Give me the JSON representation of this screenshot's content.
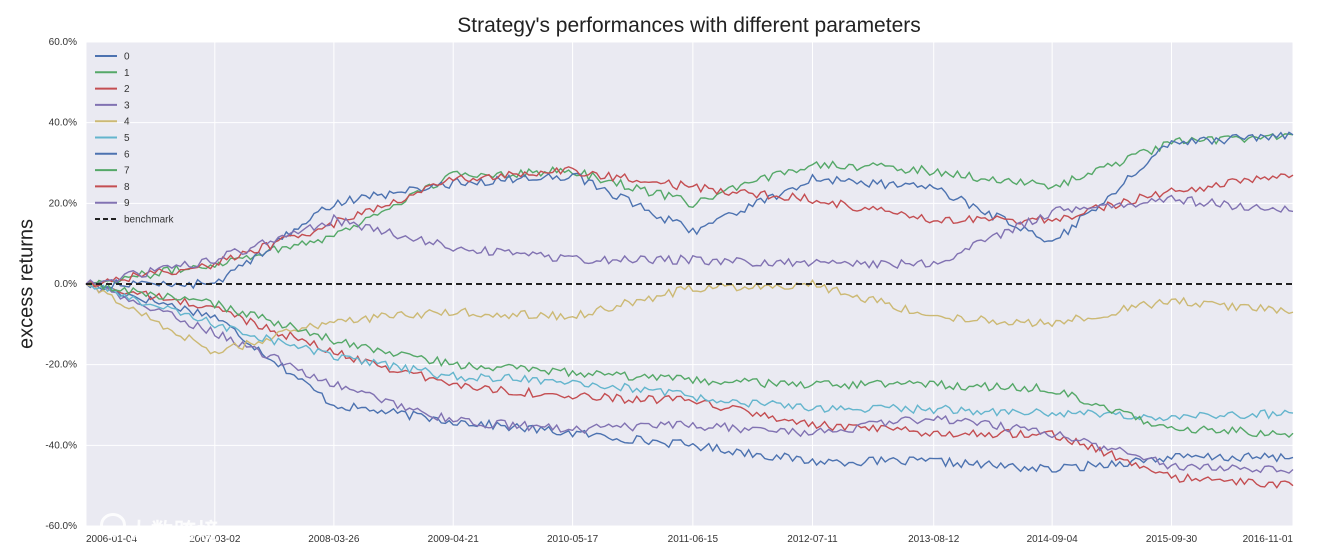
{
  "chart_data": {
    "type": "line",
    "title": "Strategy's performances with different parameters",
    "xlabel": "",
    "ylabel": "excess returns",
    "xlim": [
      "2006-01-04",
      "2016-11-01"
    ],
    "ylim": [
      -0.6,
      0.6
    ],
    "grid": true,
    "legend_position": "upper-left",
    "x_ticks": [
      "2006-01-04",
      "2007-03-02",
      "2008-03-26",
      "2009-04-21",
      "2010-05-17",
      "2011-06-15",
      "2012-07-11",
      "2013-08-12",
      "2014-09-04",
      "2015-09-30",
      "2016-11-01"
    ],
    "y_ticks": [
      -0.6,
      -0.4,
      -0.2,
      0.0,
      0.2,
      0.4,
      0.6
    ],
    "x_tick_labels": [
      "2006-01-04",
      "2007-03-02",
      "2008-03-26",
      "2009-04-21",
      "2010-05-17",
      "2011-06-15",
      "2012-07-11",
      "2013-08-12",
      "2014-09-04",
      "2015-09-30",
      "2016-11-01"
    ],
    "y_tick_labels": [
      "-60.0%",
      "-40.0%",
      "-20.0%",
      "0.0%",
      "20.0%",
      "40.0%",
      "60.0%"
    ],
    "series": [
      {
        "name": "0",
        "color": "#4c72b0",
        "x": [
          "2006-01-04",
          "2007-03-02",
          "2008-03-26",
          "2009-04-21",
          "2010-05-17",
          "2011-06-15",
          "2012-07-11",
          "2013-08-12",
          "2014-09-04",
          "2015-09-30",
          "2016-11-01"
        ],
        "values": [
          0.0,
          -0.08,
          -0.3,
          -0.34,
          -0.37,
          -0.4,
          -0.44,
          -0.44,
          -0.46,
          -0.43,
          -0.43
        ]
      },
      {
        "name": "1",
        "color": "#55a868",
        "x": [
          "2006-01-04",
          "2007-03-02",
          "2008-03-26",
          "2009-04-21",
          "2010-05-17",
          "2011-06-15",
          "2012-07-11",
          "2013-08-12",
          "2014-09-04",
          "2015-09-30",
          "2016-11-01"
        ],
        "values": [
          0.0,
          0.05,
          0.12,
          0.27,
          0.28,
          0.2,
          0.3,
          0.28,
          0.24,
          0.35,
          0.37
        ]
      },
      {
        "name": "2",
        "color": "#c44e52",
        "x": [
          "2006-01-04",
          "2007-03-02",
          "2008-03-26",
          "2009-04-21",
          "2010-05-17",
          "2011-06-15",
          "2012-07-11",
          "2013-08-12",
          "2014-09-04",
          "2015-09-30",
          "2016-11-01"
        ],
        "values": [
          0.0,
          -0.06,
          -0.17,
          -0.25,
          -0.28,
          -0.29,
          -0.35,
          -0.37,
          -0.37,
          -0.48,
          -0.5
        ]
      },
      {
        "name": "3",
        "color": "#8172b2",
        "x": [
          "2006-01-04",
          "2007-03-02",
          "2008-03-26",
          "2009-04-21",
          "2010-05-17",
          "2011-06-15",
          "2012-07-11",
          "2013-08-12",
          "2014-09-04",
          "2015-09-30",
          "2016-11-01"
        ],
        "values": [
          0.0,
          -0.12,
          -0.25,
          -0.34,
          -0.36,
          -0.35,
          -0.37,
          -0.33,
          -0.37,
          -0.45,
          -0.46
        ]
      },
      {
        "name": "4",
        "color": "#ccb974",
        "x": [
          "2006-01-04",
          "2007-03-02",
          "2008-03-26",
          "2009-04-21",
          "2010-05-17",
          "2011-06-15",
          "2012-07-11",
          "2013-08-12",
          "2014-09-04",
          "2015-09-30",
          "2016-11-01"
        ],
        "values": [
          0.0,
          -0.17,
          -0.09,
          -0.07,
          -0.08,
          -0.01,
          0.0,
          -0.08,
          -0.1,
          -0.04,
          -0.07
        ]
      },
      {
        "name": "5",
        "color": "#64b5cd",
        "x": [
          "2006-01-04",
          "2007-03-02",
          "2008-03-26",
          "2009-04-21",
          "2010-05-17",
          "2011-06-15",
          "2012-07-11",
          "2013-08-12",
          "2014-09-04",
          "2015-09-30",
          "2016-11-01"
        ],
        "values": [
          0.0,
          -0.1,
          -0.18,
          -0.23,
          -0.24,
          -0.28,
          -0.31,
          -0.31,
          -0.32,
          -0.33,
          -0.32
        ]
      },
      {
        "name": "6",
        "color": "#4c72b0",
        "x": [
          "2006-01-04",
          "2007-03-02",
          "2008-03-26",
          "2009-04-21",
          "2010-05-17",
          "2011-06-15",
          "2012-07-11",
          "2013-08-12",
          "2014-09-04",
          "2015-09-30",
          "2016-11-01"
        ],
        "values": [
          0.0,
          0.0,
          0.2,
          0.25,
          0.27,
          0.13,
          0.26,
          0.24,
          0.1,
          0.35,
          0.37
        ]
      },
      {
        "name": "7",
        "color": "#55a868",
        "x": [
          "2006-01-04",
          "2007-03-02",
          "2008-03-26",
          "2009-04-21",
          "2010-05-17",
          "2011-06-15",
          "2012-07-11",
          "2013-08-12",
          "2014-09-04",
          "2015-09-30",
          "2016-11-01"
        ],
        "values": [
          0.0,
          -0.05,
          -0.14,
          -0.2,
          -0.22,
          -0.24,
          -0.25,
          -0.25,
          -0.26,
          -0.36,
          -0.37
        ]
      },
      {
        "name": "8",
        "color": "#c44e52",
        "x": [
          "2006-01-04",
          "2007-03-02",
          "2008-03-26",
          "2009-04-21",
          "2010-05-17",
          "2011-06-15",
          "2012-07-11",
          "2013-08-12",
          "2014-09-04",
          "2015-09-30",
          "2016-11-01"
        ],
        "values": [
          0.0,
          0.05,
          0.15,
          0.26,
          0.28,
          0.24,
          0.21,
          0.16,
          0.16,
          0.23,
          0.27
        ]
      },
      {
        "name": "9",
        "color": "#8172b2",
        "x": [
          "2006-01-04",
          "2007-03-02",
          "2008-03-26",
          "2009-04-21",
          "2010-05-17",
          "2011-06-15",
          "2012-07-11",
          "2013-08-12",
          "2014-09-04",
          "2015-09-30",
          "2016-11-01"
        ],
        "values": [
          0.0,
          0.06,
          0.16,
          0.09,
          0.06,
          0.06,
          0.05,
          0.05,
          0.18,
          0.21,
          0.18
        ]
      },
      {
        "name": "benchmark",
        "color": "#222222",
        "dashed": true,
        "x": [
          "2006-01-04",
          "2016-11-01"
        ],
        "values": [
          0.0,
          0.0
        ]
      }
    ]
  },
  "watermark": {
    "text": "大数跨境"
  }
}
